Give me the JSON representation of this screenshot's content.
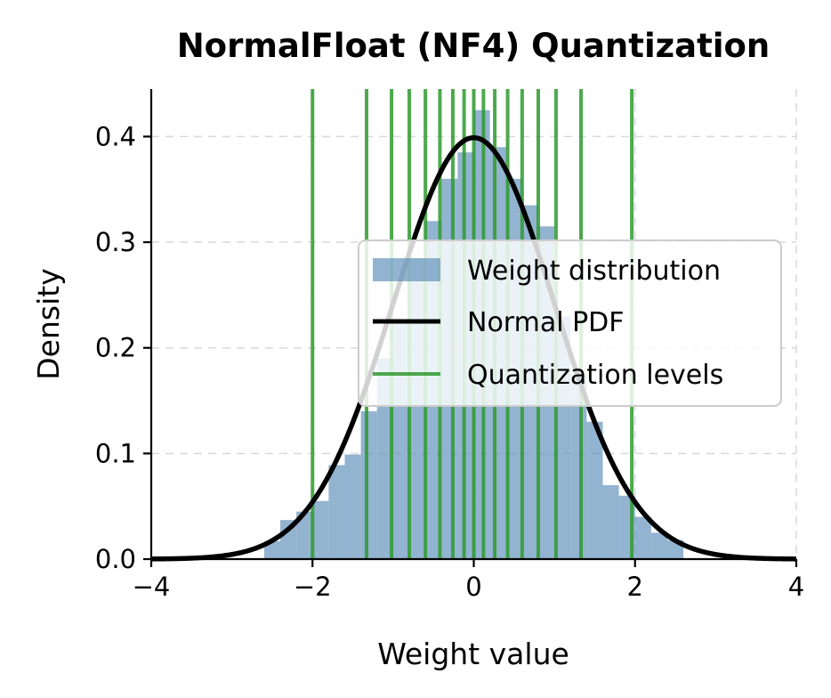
{
  "chart_data": {
    "type": "histogram",
    "title": "NormalFloat (NF4) Quantization",
    "xlabel": "Weight value",
    "ylabel": "Density",
    "xlim": [
      -4,
      4
    ],
    "ylim": [
      0,
      0.445
    ],
    "grid": true,
    "legend_position": "center-right",
    "x_ticks": [
      -4,
      -2,
      0,
      2,
      4
    ],
    "x_tick_labels": [
      "−4",
      "−2",
      "0",
      "2",
      "4"
    ],
    "y_ticks": [
      0.0,
      0.1,
      0.2,
      0.3,
      0.4
    ],
    "y_tick_labels": [
      "0.0",
      "0.1",
      "0.2",
      "0.3",
      "0.4"
    ],
    "histogram": {
      "name": "Weight distribution",
      "color": "#5b8db8",
      "opacity": 0.66,
      "bin_edges": [
        -2.6,
        -2.4,
        -2.2,
        -2.0,
        -1.8,
        -1.6,
        -1.4,
        -1.2,
        -1.0,
        -0.8,
        -0.6,
        -0.4,
        -0.2,
        0.0,
        0.2,
        0.4,
        0.6,
        0.8,
        1.0,
        1.2,
        1.4,
        1.6,
        1.8,
        2.0,
        2.2,
        2.4,
        2.6
      ],
      "densities": [
        0.017,
        0.037,
        0.045,
        0.055,
        0.089,
        0.099,
        0.14,
        0.19,
        0.225,
        0.285,
        0.32,
        0.36,
        0.385,
        0.425,
        0.39,
        0.36,
        0.335,
        0.315,
        0.23,
        0.175,
        0.13,
        0.07,
        0.06,
        0.04,
        0.025,
        0.018
      ]
    },
    "pdf": {
      "name": "Normal PDF",
      "color": "#000000",
      "mean": 0,
      "std": 1
    },
    "levels": {
      "name": "Quantization levels",
      "color": "#2e9a2e",
      "values": [
        -2.0,
        -1.33,
        -1.02,
        -0.8,
        -0.6,
        -0.42,
        -0.26,
        -0.12,
        0.0,
        0.12,
        0.26,
        0.42,
        0.6,
        0.8,
        1.02,
        1.33,
        1.96
      ]
    },
    "legend": [
      "Weight distribution",
      "Normal PDF",
      "Quantization levels"
    ]
  }
}
